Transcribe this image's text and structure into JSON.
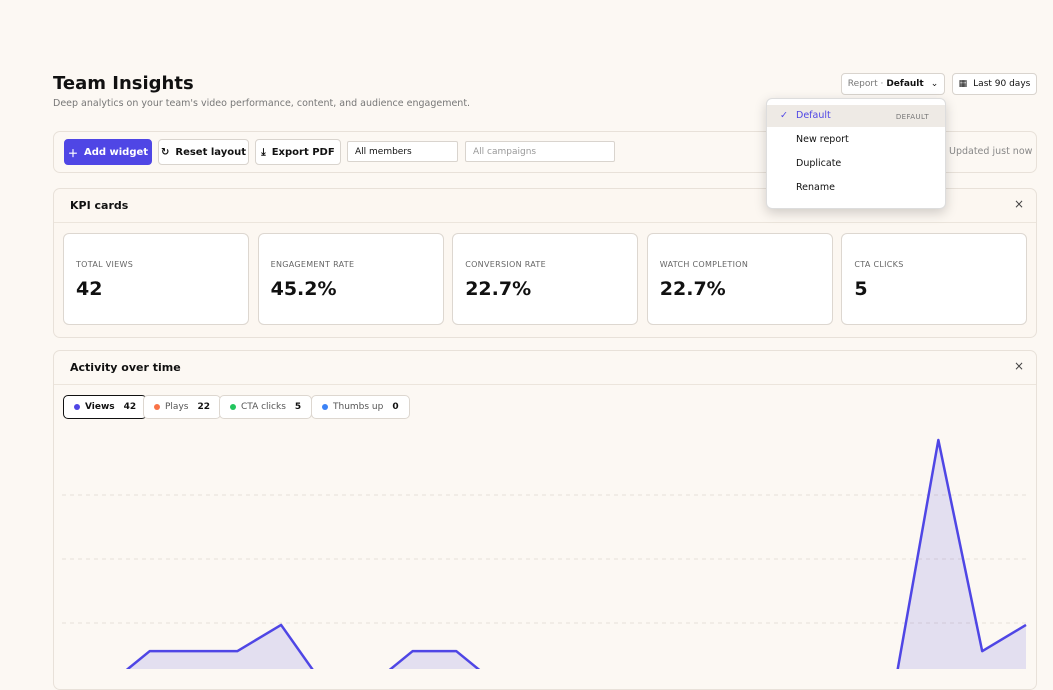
{
  "header": {
    "title": "Team Insights",
    "subtitle": "Deep analytics on your team's video performance, content, and audience engagement.",
    "report_label": "Report ·",
    "report_value": "Default",
    "date_range": "Last 90 days"
  },
  "report_menu": {
    "items": [
      {
        "label": "Default",
        "badge": "DEFAULT"
      },
      {
        "label": "New report"
      },
      {
        "label": "Duplicate"
      },
      {
        "label": "Rename"
      }
    ]
  },
  "toolbar": {
    "add_widget": "Add widget",
    "reset_layout": "Reset layout",
    "export_pdf": "Export PDF",
    "members": "All members",
    "campaigns": "All campaigns",
    "status": "Updated just now"
  },
  "kpi_panel": {
    "title": "KPI cards",
    "cards": [
      {
        "label": "TOTAL VIEWS",
        "value": "42"
      },
      {
        "label": "ENGAGEMENT RATE",
        "value": "45.2%"
      },
      {
        "label": "CONVERSION RATE",
        "value": "22.7%"
      },
      {
        "label": "WATCH COMPLETION",
        "value": "22.7%"
      },
      {
        "label": "CTA CLICKS",
        "value": "5"
      }
    ]
  },
  "activity_panel": {
    "title": "Activity over time",
    "metrics": [
      {
        "name": "Views",
        "total": 42,
        "color": "#4f46e5"
      },
      {
        "name": "Plays",
        "total": 22,
        "color": "#f97347"
      },
      {
        "name": "CTA clicks",
        "total": 5,
        "color": "#22c55e"
      },
      {
        "name": "Thumbs up",
        "total": 0,
        "color": "#3b82f6"
      }
    ]
  },
  "chart_data": {
    "type": "line",
    "series": [
      {
        "color": "#4f46e5",
        "values": [
          0,
          0,
          0.56,
          0.56,
          0.56,
          0.97,
          0,
          0,
          0.56,
          0.56,
          0,
          0,
          0,
          0,
          0,
          0,
          0,
          0,
          0,
          0,
          3.86,
          0.56,
          0.97
        ]
      }
    ],
    "ylim": [
      0,
      4
    ],
    "yticks": [
      1,
      2,
      3
    ],
    "grid": true
  }
}
